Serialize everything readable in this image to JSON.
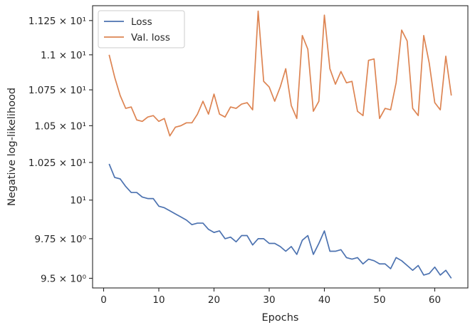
{
  "chart_data": {
    "type": "line",
    "xlabel": "Epochs",
    "ylabel": "Negative log-likelihood",
    "xlim": [
      -2,
      66
    ],
    "ylim": [
      9.44,
      11.36
    ],
    "y_scale": "log",
    "grid": false,
    "legend": "top-left",
    "x_ticks": [
      0,
      10,
      20,
      30,
      40,
      50,
      60
    ],
    "y_ticks": [
      {
        "value": 9.5,
        "label": "9.5 × 10⁰"
      },
      {
        "value": 9.75,
        "label": "9.75 × 10⁰"
      },
      {
        "value": 10,
        "label": "10¹"
      },
      {
        "value": 10.25,
        "label": "1.025 × 10¹"
      },
      {
        "value": 10.5,
        "label": "1.05 × 10¹"
      },
      {
        "value": 10.75,
        "label": "1.075 × 10¹"
      },
      {
        "value": 11,
        "label": "1.1 × 10¹"
      },
      {
        "value": 11.25,
        "label": "1.125 × 10¹"
      }
    ],
    "x": [
      1,
      2,
      3,
      4,
      5,
      6,
      7,
      8,
      9,
      10,
      11,
      12,
      13,
      14,
      15,
      16,
      17,
      18,
      19,
      20,
      21,
      22,
      23,
      24,
      25,
      26,
      27,
      28,
      29,
      30,
      31,
      32,
      33,
      34,
      35,
      36,
      37,
      38,
      39,
      40,
      41,
      42,
      43,
      44,
      45,
      46,
      47,
      48,
      49,
      50,
      51,
      52,
      53,
      54,
      55,
      56,
      57,
      58,
      59,
      60,
      61,
      62,
      63
    ],
    "series": [
      {
        "name": "Loss",
        "color": "#4c72b0",
        "values": [
          10.24,
          10.15,
          10.14,
          10.09,
          10.05,
          10.05,
          10.02,
          10.01,
          10.01,
          9.96,
          9.95,
          9.93,
          9.91,
          9.89,
          9.87,
          9.84,
          9.85,
          9.85,
          9.81,
          9.79,
          9.8,
          9.75,
          9.76,
          9.73,
          9.77,
          9.77,
          9.71,
          9.75,
          9.75,
          9.72,
          9.72,
          9.7,
          9.67,
          9.7,
          9.65,
          9.74,
          9.77,
          9.65,
          9.72,
          9.8,
          9.67,
          9.67,
          9.68,
          9.63,
          9.62,
          9.63,
          9.59,
          9.62,
          9.61,
          9.59,
          9.59,
          9.56,
          9.63,
          9.61,
          9.58,
          9.55,
          9.58,
          9.52,
          9.53,
          9.57,
          9.52,
          9.55,
          9.5
        ]
      },
      {
        "name": "Val. loss",
        "color": "#dd8452",
        "values": [
          11.0,
          10.84,
          10.71,
          10.62,
          10.63,
          10.54,
          10.53,
          10.56,
          10.57,
          10.53,
          10.55,
          10.43,
          10.49,
          10.5,
          10.52,
          10.52,
          10.58,
          10.67,
          10.58,
          10.72,
          10.58,
          10.56,
          10.63,
          10.62,
          10.65,
          10.66,
          10.61,
          11.32,
          10.81,
          10.77,
          10.67,
          10.77,
          10.9,
          10.64,
          10.55,
          11.14,
          11.04,
          10.6,
          10.67,
          11.29,
          10.9,
          10.79,
          10.88,
          10.8,
          10.81,
          10.6,
          10.57,
          10.96,
          10.97,
          10.55,
          10.62,
          10.61,
          10.8,
          11.18,
          11.1,
          10.62,
          10.57,
          11.14,
          10.94,
          10.66,
          10.61,
          10.99,
          10.71
        ]
      }
    ]
  }
}
